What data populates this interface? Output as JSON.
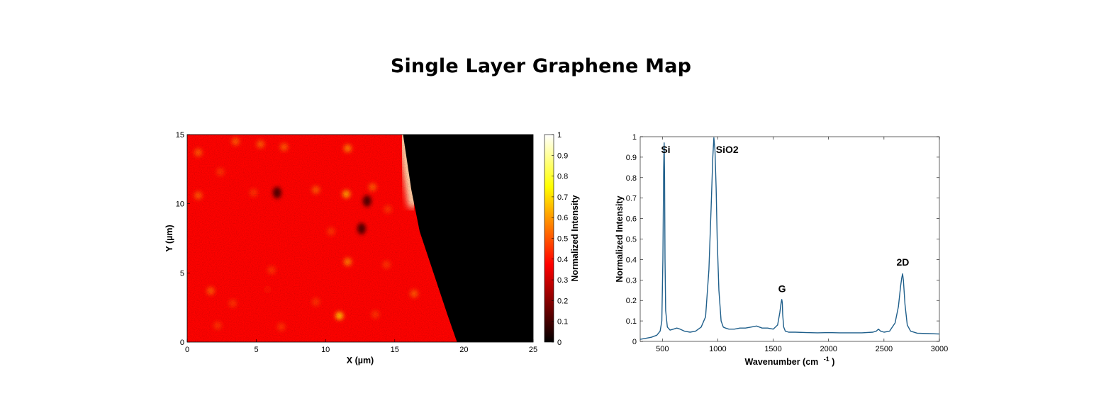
{
  "title": "Single Layer Graphene Map",
  "chart_data": [
    {
      "type": "heatmap",
      "xlabel": "X (µm)",
      "ylabel": "Y (µm)",
      "xlim": [
        0,
        25
      ],
      "ylim": [
        0,
        15
      ],
      "xticks": [
        0,
        5,
        10,
        15,
        20,
        25
      ],
      "yticks": [
        0,
        5,
        10,
        15
      ],
      "colorbar": {
        "label": "Normalized Intensity",
        "range": [
          0,
          1
        ],
        "ticks": [
          "0",
          "0.1",
          "0.2",
          "0.3",
          "0.4",
          "0.5",
          "0.6",
          "0.7",
          "0.8",
          "0.9",
          "1"
        ],
        "colormap": "hot"
      },
      "base_intensity": 0.38,
      "flake_edge": [
        [
          15.6,
          15
        ],
        [
          16.2,
          11
        ],
        [
          16.8,
          8
        ],
        [
          17.8,
          5
        ],
        [
          18.8,
          2
        ],
        [
          19.5,
          0
        ]
      ],
      "bright_band": {
        "points": [
          [
            15.6,
            15
          ],
          [
            16.0,
            12
          ],
          [
            16.3,
            10
          ]
        ],
        "intensity": 0.95
      },
      "bright_spots": [
        {
          "x": 0.8,
          "y": 13.7,
          "value": 0.5
        },
        {
          "x": 3.5,
          "y": 14.5,
          "value": 0.5
        },
        {
          "x": 5.3,
          "y": 14.3,
          "value": 0.5
        },
        {
          "x": 7.0,
          "y": 14.1,
          "value": 0.5
        },
        {
          "x": 11.6,
          "y": 14.0,
          "value": 0.55
        },
        {
          "x": 2.4,
          "y": 12.3,
          "value": 0.45
        },
        {
          "x": 0.8,
          "y": 10.6,
          "value": 0.5
        },
        {
          "x": 4.8,
          "y": 10.8,
          "value": 0.45
        },
        {
          "x": 9.3,
          "y": 11.0,
          "value": 0.5
        },
        {
          "x": 11.5,
          "y": 10.7,
          "value": 0.6
        },
        {
          "x": 13.4,
          "y": 11.2,
          "value": 0.5
        },
        {
          "x": 14.5,
          "y": 9.6,
          "value": 0.45
        },
        {
          "x": 10.4,
          "y": 8.0,
          "value": 0.45
        },
        {
          "x": 11.6,
          "y": 5.8,
          "value": 0.55
        },
        {
          "x": 14.4,
          "y": 5.6,
          "value": 0.45
        },
        {
          "x": 6.1,
          "y": 5.2,
          "value": 0.45
        },
        {
          "x": 5.8,
          "y": 3.8,
          "value": 0.4
        },
        {
          "x": 1.7,
          "y": 3.7,
          "value": 0.5
        },
        {
          "x": 3.3,
          "y": 2.8,
          "value": 0.45
        },
        {
          "x": 9.3,
          "y": 2.9,
          "value": 0.45
        },
        {
          "x": 16.4,
          "y": 3.5,
          "value": 0.5
        },
        {
          "x": 11.0,
          "y": 1.9,
          "value": 0.65
        },
        {
          "x": 13.6,
          "y": 2.0,
          "value": 0.45
        },
        {
          "x": 2.2,
          "y": 1.2,
          "value": 0.45
        },
        {
          "x": 6.8,
          "y": 1.1,
          "value": 0.45
        }
      ],
      "dark_spots": [
        {
          "x": 6.5,
          "y": 10.8
        },
        {
          "x": 12.6,
          "y": 8.2
        },
        {
          "x": 13.0,
          "y": 10.2
        }
      ]
    },
    {
      "type": "line",
      "xlabel": "Wavenumber (cm",
      "xlabel_sup": "-1",
      "xlabel_close": ")",
      "ylabel": "Normalized Intensity",
      "xlim": [
        300,
        3000
      ],
      "ylim": [
        0,
        1
      ],
      "xticks": [
        500,
        1000,
        1500,
        2000,
        2500,
        3000
      ],
      "yticks": [
        "0",
        "0.1",
        "0.2",
        "0.3",
        "0.4",
        "0.5",
        "0.6",
        "0.7",
        "0.8",
        "0.9",
        "1"
      ],
      "line_color": "#1f5f8b",
      "series": [
        {
          "x": [
            300,
            350,
            400,
            450,
            480,
            495,
            505,
            512,
            516,
            520,
            524,
            530,
            545,
            570,
            600,
            630,
            660,
            700,
            750,
            800,
            850,
            890,
            920,
            940,
            955,
            965,
            975,
            985,
            995,
            1010,
            1030,
            1050,
            1070,
            1100,
            1150,
            1200,
            1250,
            1300,
            1350,
            1400,
            1450,
            1500,
            1540,
            1560,
            1572,
            1578,
            1582,
            1586,
            1595,
            1610,
            1640,
            1700,
            1800,
            1900,
            2000,
            2100,
            2200,
            2300,
            2400,
            2430,
            2450,
            2470,
            2500,
            2550,
            2600,
            2630,
            2650,
            2660,
            2668,
            2675,
            2690,
            2710,
            2740,
            2800,
            2900,
            3000
          ],
          "y": [
            0.01,
            0.015,
            0.02,
            0.03,
            0.05,
            0.1,
            0.4,
            0.85,
            0.97,
            0.8,
            0.4,
            0.15,
            0.07,
            0.055,
            0.06,
            0.065,
            0.06,
            0.05,
            0.045,
            0.05,
            0.07,
            0.12,
            0.35,
            0.65,
            0.9,
            0.995,
            0.93,
            0.75,
            0.5,
            0.25,
            0.1,
            0.07,
            0.065,
            0.06,
            0.06,
            0.065,
            0.065,
            0.07,
            0.075,
            0.065,
            0.065,
            0.06,
            0.08,
            0.14,
            0.19,
            0.205,
            0.19,
            0.13,
            0.07,
            0.05,
            0.045,
            0.045,
            0.043,
            0.042,
            0.043,
            0.042,
            0.042,
            0.042,
            0.045,
            0.05,
            0.06,
            0.05,
            0.045,
            0.05,
            0.09,
            0.17,
            0.27,
            0.31,
            0.33,
            0.3,
            0.18,
            0.08,
            0.05,
            0.04,
            0.038,
            0.036
          ]
        }
      ],
      "annotations": [
        {
          "text": "Si",
          "x": 530,
          "y": 0.92
        },
        {
          "text": "SiO2",
          "x": 1085,
          "y": 0.92
        },
        {
          "text": "G",
          "x": 1580,
          "y": 0.24
        },
        {
          "text": "2D",
          "x": 2670,
          "y": 0.37
        }
      ]
    }
  ]
}
